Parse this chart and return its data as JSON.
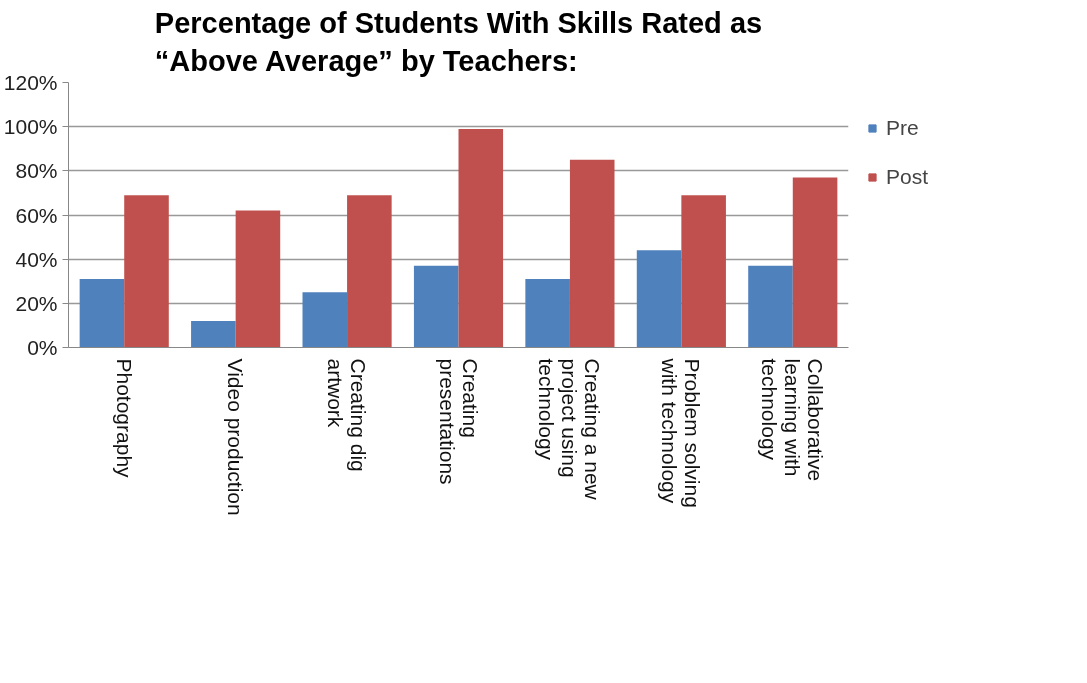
{
  "chart_data": {
    "type": "bar",
    "title": "Percentage of Students With Skills Rated as\n“Above Average” by Teachers:",
    "categories": [
      "Photography",
      "Video production",
      "Creating dig\nartwork",
      "Creating\npresentations",
      "Creating a new\nproject using\ntechnology",
      "Problem solving\nwith technology",
      "Collaborative\nlearning with\ntechnology"
    ],
    "series": [
      {
        "name": "Pre",
        "color": "#4f81bd",
        "values": [
          31,
          12,
          25,
          37,
          31,
          44,
          37
        ]
      },
      {
        "name": "Post",
        "color": "#c0504d",
        "values": [
          69,
          62,
          69,
          99,
          85,
          69,
          77
        ]
      }
    ],
    "ylim": [
      0,
      120
    ],
    "yticks": [
      {
        "value": 0,
        "label": "0%"
      },
      {
        "value": 20,
        "label": "20%"
      },
      {
        "value": 40,
        "label": "40%"
      },
      {
        "value": 60,
        "label": "60%"
      },
      {
        "value": 80,
        "label": "80%"
      },
      {
        "value": 100,
        "label": "100%"
      },
      {
        "value": 120,
        "label": "120%"
      }
    ],
    "grid": "y",
    "legend": "right"
  }
}
